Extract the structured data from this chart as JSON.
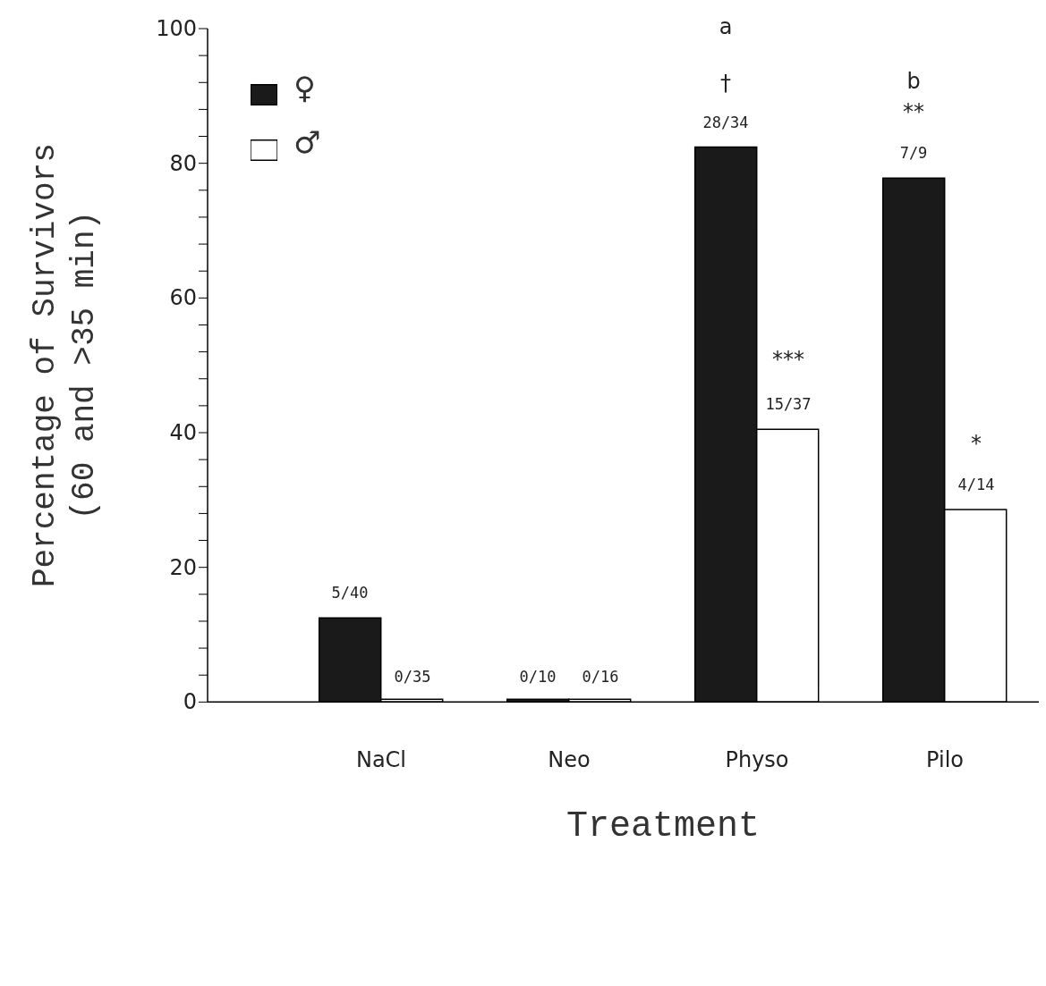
{
  "chart_data": {
    "type": "bar",
    "xlabel": "Treatment",
    "ylabel": "Percentage of Survivors\n(60 and >35 min)",
    "categories": [
      "NaCl",
      "Neo",
      "Physo",
      "Pilo"
    ],
    "series": [
      {
        "name": "♀",
        "color": "#1a1a1a",
        "values": [
          12.5,
          0,
          82.4,
          77.8
        ],
        "value_labels": [
          "5/40",
          "0/10",
          "28/34",
          "7/9"
        ]
      },
      {
        "name": "♂",
        "color": "#ffffff",
        "values": [
          0,
          0,
          40.5,
          28.6
        ],
        "value_labels": [
          "0/35",
          "0/16",
          "15/37",
          "4/14"
        ]
      }
    ],
    "ylim": [
      0,
      100
    ],
    "yticks": [
      0,
      {
        "value": 4,
        "label": null
      },
      {
        "value": 8,
        "label": null
      },
      {
        "value": 12,
        "label": null
      },
      {
        "value": 16,
        "label": null
      },
      20,
      {
        "value": 24,
        "label": null
      },
      {
        "value": 28,
        "label": null
      },
      {
        "value": 32,
        "label": null
      },
      {
        "value": 36,
        "label": null
      },
      40,
      {
        "value": 44,
        "label": null
      },
      {
        "value": 48,
        "label": null
      },
      {
        "value": 52,
        "label": null
      },
      {
        "value": 56,
        "label": null
      },
      60,
      {
        "value": 64,
        "label": null
      },
      {
        "value": 68,
        "label": null
      },
      {
        "value": 72,
        "label": null
      },
      {
        "value": 76,
        "label": null
      },
      80,
      {
        "value": 84,
        "label": null
      },
      {
        "value": 88,
        "label": null
      },
      {
        "value": 92,
        "label": null
      },
      {
        "value": 96,
        "label": null
      },
      100
    ],
    "annotations": [
      "a",
      "†",
      "b",
      "**",
      "***",
      "*"
    ],
    "legend": "top left",
    "grid": false
  }
}
